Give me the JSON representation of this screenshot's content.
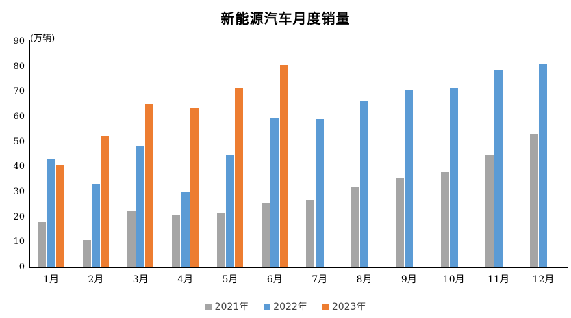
{
  "title": "新能源汽车月度销量",
  "y_axis": {
    "unit_label": "(万辆)",
    "min": 0,
    "max": 90,
    "step": 10
  },
  "chart_data": {
    "type": "bar",
    "title": "新能源汽车月度销量",
    "xlabel": "",
    "ylabel": "(万辆)",
    "ylim": [
      0,
      90
    ],
    "ytick_step": 10,
    "grid": false,
    "legend_position": "bottom",
    "categories": [
      "1月",
      "2月",
      "3月",
      "4月",
      "5月",
      "6月",
      "7月",
      "8月",
      "9月",
      "10月",
      "11月",
      "12月"
    ],
    "series": [
      {
        "name": "2021年",
        "color": "#A5A5A5",
        "values": [
          17.9,
          11.0,
          22.6,
          20.6,
          21.7,
          25.6,
          27.1,
          32.1,
          35.7,
          38.3,
          45.0,
          53.1
        ]
      },
      {
        "name": "2022年",
        "color": "#5B9BD5",
        "values": [
          43.1,
          33.4,
          48.4,
          29.9,
          44.7,
          59.6,
          59.3,
          66.6,
          70.8,
          71.4,
          78.6,
          81.4
        ]
      },
      {
        "name": "2023年",
        "color": "#ED7D31",
        "values": [
          40.8,
          52.5,
          65.3,
          63.6,
          71.7,
          80.6,
          null,
          null,
          null,
          null,
          null,
          null
        ]
      }
    ]
  },
  "colors": {
    "axis": "#000000",
    "tick_text": "#000000",
    "legend_text": "#404040"
  }
}
